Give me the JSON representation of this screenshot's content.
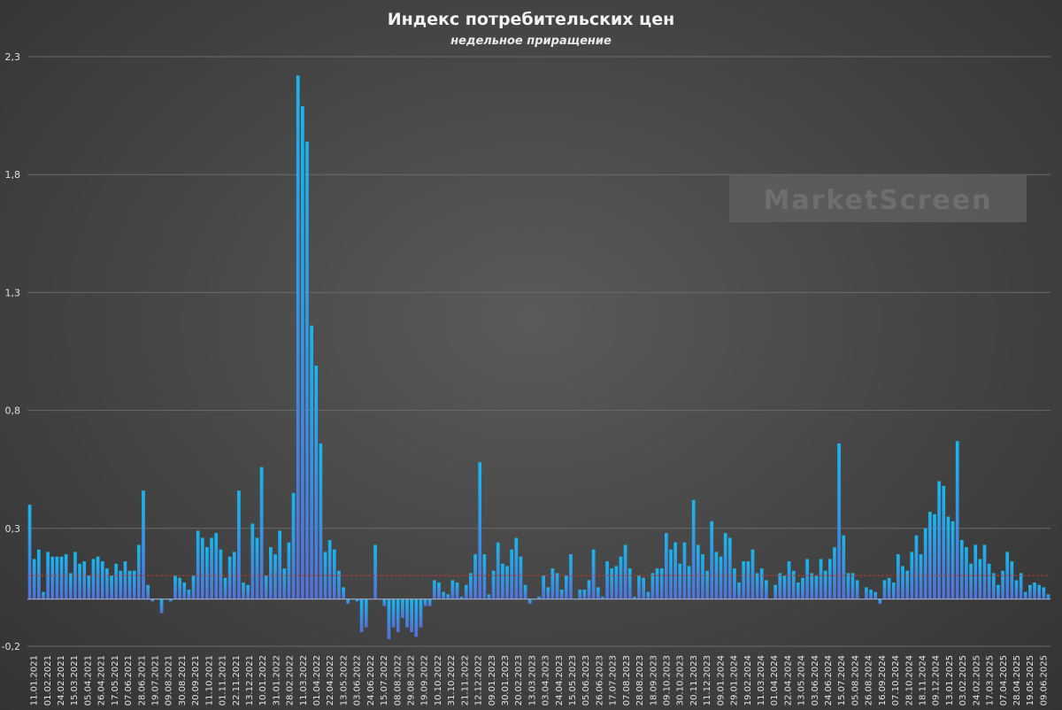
{
  "chart_data": {
    "type": "bar",
    "title": "Индекс потребительских цен",
    "subtitle": "недельное приращение",
    "ylim": [
      -0.2,
      2.3
    ],
    "yticks": [
      -0.2,
      0.3,
      0.8,
      1.3,
      1.8,
      2.3
    ],
    "ytick_labels": [
      "-0,2",
      "0,3",
      "0,8",
      "1,3",
      "1,8",
      "2,3"
    ],
    "xtick_labels": [
      "11.01.2021",
      "01.02.2021",
      "24.02.2021",
      "15.03.2021",
      "05.04.2021",
      "26.04.2021",
      "17.05.2021",
      "07.06.2021",
      "28.06.2021",
      "19.07.2021",
      "09.08.2021",
      "30.08.2021",
      "20.09.2021",
      "11.10.2021",
      "01.11.2021",
      "22.11.2021",
      "13.12.2021",
      "10.01.2022",
      "31.01.2022",
      "28.02.2022",
      "11.03.2022",
      "01.04.2022",
      "22.04.2022",
      "13.05.2022",
      "03.06.2022",
      "24.06.2022",
      "15.07.2022",
      "08.08.2022",
      "29.08.2022",
      "19.09.2022",
      "10.10.2022",
      "31.10.2022",
      "21.11.2022",
      "12.12.2022",
      "09.01.2023",
      "30.01.2023",
      "20.02.2023",
      "13.03.2023",
      "03.04.2023",
      "24.04.2023",
      "15.05.2023",
      "05.06.2023",
      "26.06.2023",
      "17.07.2023",
      "07.08.2023",
      "28.08.2023",
      "18.09.2023",
      "09.10.2023",
      "30.10.2023",
      "20.11.2023",
      "11.12.2023",
      "09.01.2024",
      "29.01.2024",
      "19.02.2024",
      "11.03.2024",
      "01.04.2024",
      "22.04.2024",
      "13.05.2024",
      "03.06.2024",
      "24.06.2024",
      "15.07.2024",
      "05.08.2024",
      "26.08.2024",
      "16.09.2024",
      "07.10.2024",
      "28.10.2024",
      "18.11.2024",
      "09.12.2024",
      "13.01.2025",
      "03.02.2025",
      "24.02.2025",
      "17.03.2025",
      "07.04.2025",
      "28.04.2025",
      "19.05.2025",
      "09.06.2025"
    ],
    "reference_line": 0.1,
    "grid": true,
    "colors": {
      "bar_top": "#19b6ee",
      "bar_bottom": "#5470d6",
      "reference": "#c0392b",
      "grid": "#6a6a6a"
    },
    "values": [
      0.4,
      0.17,
      0.21,
      0.03,
      0.2,
      0.18,
      0.18,
      0.18,
      0.19,
      0.11,
      0.2,
      0.15,
      0.16,
      0.1,
      0.17,
      0.18,
      0.16,
      0.13,
      0.1,
      0.15,
      0.12,
      0.16,
      0.12,
      0.12,
      0.23,
      0.46,
      0.06,
      -0.01,
      0.0,
      -0.06,
      0.0,
      -0.01,
      0.1,
      0.09,
      0.07,
      0.04,
      0.1,
      0.29,
      0.26,
      0.22,
      0.26,
      0.28,
      0.21,
      0.09,
      0.18,
      0.2,
      0.46,
      0.07,
      0.06,
      0.32,
      0.26,
      0.56,
      0.1,
      0.22,
      0.19,
      0.29,
      0.13,
      0.24,
      0.45,
      2.22,
      2.09,
      1.94,
      1.16,
      0.99,
      0.66,
      0.2,
      0.25,
      0.21,
      0.12,
      0.05,
      -0.02,
      0.0,
      -0.01,
      -0.14,
      -0.12,
      0.0,
      0.23,
      0.0,
      -0.03,
      -0.17,
      -0.12,
      -0.14,
      -0.08,
      -0.12,
      -0.14,
      -0.16,
      -0.12,
      -0.03,
      -0.03,
      0.08,
      0.07,
      0.03,
      0.02,
      0.08,
      0.07,
      0.01,
      0.06,
      0.11,
      0.19,
      0.58,
      0.19,
      0.02,
      0.12,
      0.24,
      0.15,
      0.14,
      0.21,
      0.26,
      0.18,
      0.06,
      -0.02,
      0.0,
      0.01,
      0.1,
      0.05,
      0.13,
      0.11,
      0.04,
      0.1,
      0.19,
      0.0,
      0.04,
      0.04,
      0.08,
      0.21,
      0.05,
      0.01,
      0.16,
      0.13,
      0.14,
      0.18,
      0.23,
      0.13,
      0.01,
      0.1,
      0.09,
      0.03,
      0.11,
      0.13,
      0.13,
      0.28,
      0.21,
      0.24,
      0.15,
      0.24,
      0.14,
      0.42,
      0.23,
      0.19,
      0.12,
      0.33,
      0.2,
      0.18,
      0.28,
      0.26,
      0.13,
      0.07,
      0.16,
      0.16,
      0.21,
      0.11,
      0.13,
      0.08,
      0.0,
      0.06,
      0.11,
      0.1,
      0.16,
      0.12,
      0.07,
      0.09,
      0.17,
      0.11,
      0.1,
      0.17,
      0.12,
      0.17,
      0.22,
      0.66,
      0.27,
      0.11,
      0.11,
      0.08,
      0.0,
      0.05,
      0.04,
      0.03,
      -0.02,
      0.08,
      0.09,
      0.07,
      0.19,
      0.14,
      0.12,
      0.2,
      0.27,
      0.19,
      0.3,
      0.37,
      0.36,
      0.5,
      0.48,
      0.35,
      0.33,
      0.67,
      0.25,
      0.22,
      0.15,
      0.23,
      0.17,
      0.23,
      0.15,
      0.11,
      0.06,
      0.12,
      0.2,
      0.16,
      0.08,
      0.11,
      0.03,
      0.06,
      0.07,
      0.06,
      0.05,
      0.02
    ]
  },
  "watermark": "MarketScreen"
}
